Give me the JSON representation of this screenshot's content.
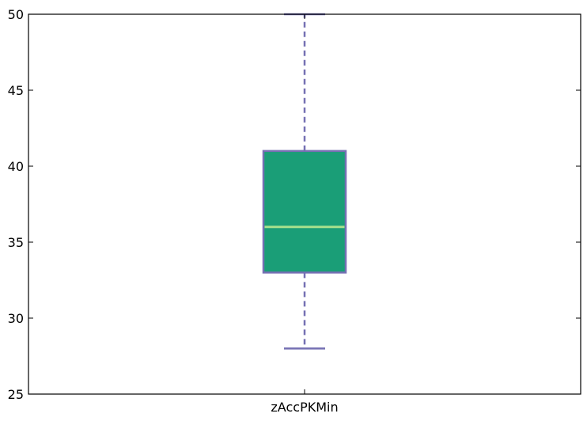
{
  "chart_data": {
    "type": "box",
    "categories": [
      "zAccPKMin"
    ],
    "boxes": [
      {
        "label": "zAccPKMin",
        "whisker_low": 28,
        "q1": 33,
        "median": 36,
        "q3": 41,
        "whisker_high": 50
      }
    ],
    "ylim": [
      25,
      50
    ],
    "yticks": [
      25,
      30,
      35,
      40,
      45,
      50
    ],
    "grid": false,
    "colors": {
      "box_fill": "#1a9e77",
      "box_edge": "#7570b3",
      "whisker": "#7570b3",
      "median": "#a6e08d",
      "axis": "#000000"
    }
  }
}
